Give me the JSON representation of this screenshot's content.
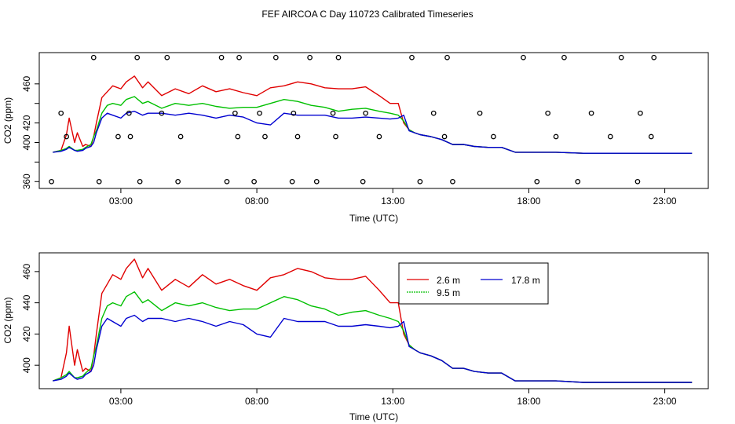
{
  "figure_title": "FEF AIRCOA C  Day 110723  Calibrated Timeseries",
  "colors": {
    "s1": "#e00000",
    "s2": "#00c000",
    "s3": "#0000d0",
    "axis": "#000000"
  },
  "chart_data": [
    {
      "type": "scatter",
      "title": "",
      "xlabel": "Time (UTC)",
      "ylabel": "CO2 (ppm)",
      "xlim": [
        0.0,
        24.6
      ],
      "ylim": [
        353,
        492
      ],
      "xticks": [
        3,
        8,
        13,
        18,
        23
      ],
      "xtick_labels": [
        "03:00",
        "08:00",
        "13:00",
        "18:00",
        "23:00"
      ],
      "yticks": [
        360,
        380,
        400,
        420,
        440,
        460
      ],
      "ytick_labels": [
        "360",
        "",
        "400",
        "420",
        "",
        "460"
      ],
      "points_x": [
        0.45,
        0.8,
        1.0,
        2.0,
        2.2,
        2.9,
        3.3,
        3.35,
        3.6,
        3.7,
        4.5,
        4.7,
        5.1,
        5.2,
        6.7,
        6.9,
        7.2,
        7.3,
        7.35,
        7.9,
        8.1,
        8.3,
        8.7,
        9.3,
        9.35,
        9.5,
        9.95,
        10.2,
        10.8,
        10.9,
        11.0,
        11.9,
        12.0,
        12.5,
        13.7,
        14.0,
        14.5,
        14.9,
        15.0,
        15.2,
        16.2,
        16.7,
        17.8,
        18.3,
        18.7,
        19.0,
        19.3,
        19.8,
        20.3,
        21.0,
        21.4,
        22.0,
        22.1,
        22.5,
        22.6
      ],
      "points_y": [
        360,
        430,
        406,
        487,
        360,
        406,
        430,
        406,
        487,
        360,
        430,
        487,
        360,
        406,
        487,
        360,
        430,
        406,
        487,
        360,
        430,
        406,
        487,
        360,
        430,
        406,
        487,
        360,
        430,
        406,
        487,
        360,
        430,
        406,
        487,
        360,
        430,
        406,
        487,
        360,
        430,
        406,
        487,
        360,
        430,
        406,
        487,
        360,
        430,
        406,
        487,
        360,
        430,
        406,
        487
      ],
      "series": [
        {
          "name": "2.6 m",
          "color": "#e00000",
          "x": [
            0.5,
            0.8,
            1.0,
            1.1,
            1.3,
            1.4,
            1.6,
            1.7,
            1.9,
            2.0,
            2.1,
            2.3,
            2.5,
            2.7,
            3.0,
            3.2,
            3.5,
            3.8,
            4.0,
            4.5,
            5.0,
            5.5,
            6.0,
            6.5,
            7.0,
            7.5,
            8.0,
            8.5,
            9.0,
            9.5,
            10.0,
            10.5,
            11.0,
            11.5,
            12.0,
            12.5,
            12.9,
            13.2,
            13.4,
            13.6,
            13.8,
            14.0,
            14.4,
            14.8,
            15.2,
            15.6,
            16.0,
            16.5,
            17.0,
            17.5,
            18.0,
            19.0,
            20.0,
            21.0,
            22.0,
            23.0,
            24.0
          ],
          "y": [
            390,
            392,
            408,
            425,
            400,
            410,
            396,
            398,
            396,
            406,
            420,
            446,
            452,
            458,
            455,
            462,
            468,
            456,
            462,
            448,
            455,
            450,
            458,
            452,
            455,
            451,
            448,
            456,
            458,
            462,
            460,
            456,
            455,
            455,
            457,
            448,
            440,
            440,
            420,
            413,
            410,
            408,
            406,
            403,
            398,
            398,
            396,
            395,
            395,
            390,
            390,
            390,
            389,
            389,
            389,
            389,
            389
          ]
        },
        {
          "name": "9.5 m",
          "color": "#00c000",
          "x": [
            0.5,
            0.8,
            1.0,
            1.1,
            1.3,
            1.4,
            1.6,
            1.7,
            1.9,
            2.0,
            2.1,
            2.3,
            2.5,
            2.7,
            3.0,
            3.2,
            3.5,
            3.8,
            4.0,
            4.5,
            5.0,
            5.5,
            6.0,
            6.5,
            7.0,
            7.5,
            8.0,
            8.5,
            9.0,
            9.5,
            10.0,
            10.5,
            11.0,
            11.5,
            12.0,
            12.5,
            12.9,
            13.2,
            13.4,
            13.6,
            13.8,
            14.0,
            14.4,
            14.8,
            15.2,
            15.6,
            16.0,
            16.5,
            17.0,
            17.5,
            18.0,
            19.0,
            20.0,
            21.0,
            22.0,
            23.0,
            24.0
          ],
          "y": [
            390,
            392,
            394,
            396,
            392,
            392,
            393,
            395,
            398,
            406,
            412,
            430,
            438,
            440,
            438,
            444,
            447,
            440,
            442,
            435,
            440,
            438,
            440,
            437,
            435,
            436,
            436,
            440,
            444,
            442,
            438,
            436,
            432,
            434,
            435,
            432,
            430,
            428,
            422,
            413,
            410,
            408,
            406,
            403,
            398,
            398,
            396,
            395,
            395,
            390,
            390,
            390,
            389,
            389,
            389,
            389,
            389
          ]
        },
        {
          "name": "17.8 m",
          "color": "#0000d0",
          "x": [
            0.5,
            0.8,
            1.0,
            1.1,
            1.3,
            1.4,
            1.6,
            1.7,
            1.9,
            2.0,
            2.1,
            2.3,
            2.5,
            2.7,
            3.0,
            3.2,
            3.5,
            3.8,
            4.0,
            4.5,
            5.0,
            5.5,
            6.0,
            6.5,
            7.0,
            7.5,
            8.0,
            8.5,
            9.0,
            9.5,
            10.0,
            10.5,
            11.0,
            11.5,
            12.0,
            12.5,
            12.9,
            13.2,
            13.4,
            13.6,
            13.8,
            14.0,
            14.4,
            14.8,
            15.2,
            15.6,
            16.0,
            16.5,
            17.0,
            17.5,
            18.0,
            19.0,
            20.0,
            21.0,
            22.0,
            23.0,
            24.0
          ],
          "y": [
            390,
            391,
            393,
            395,
            392,
            391,
            392,
            394,
            396,
            400,
            410,
            425,
            430,
            428,
            425,
            430,
            432,
            428,
            430,
            430,
            428,
            430,
            428,
            425,
            428,
            426,
            420,
            418,
            430,
            428,
            428,
            428,
            425,
            425,
            426,
            425,
            424,
            425,
            428,
            412,
            410,
            408,
            406,
            403,
            398,
            398,
            396,
            395,
            395,
            390,
            390,
            390,
            389,
            389,
            389,
            389,
            389
          ]
        }
      ]
    },
    {
      "type": "line",
      "title": "",
      "xlabel": "Time (UTC)",
      "ylabel": "CO2 (ppm)",
      "xlim": [
        0.0,
        24.6
      ],
      "ylim": [
        385,
        472
      ],
      "xticks": [
        3,
        8,
        13,
        18,
        23
      ],
      "xtick_labels": [
        "03:00",
        "08:00",
        "13:00",
        "18:00",
        "23:00"
      ],
      "yticks": [
        400,
        420,
        440,
        460
      ],
      "ytick_labels": [
        "400",
        "420",
        "440",
        "460"
      ],
      "legend": {
        "position": "top-right",
        "entries": [
          "2.6 m",
          "9.5 m",
          "17.8 m"
        ]
      },
      "series": [
        {
          "name": "2.6 m",
          "color": "#e00000",
          "x": [
            0.5,
            0.8,
            1.0,
            1.1,
            1.3,
            1.4,
            1.6,
            1.7,
            1.9,
            2.0,
            2.1,
            2.3,
            2.5,
            2.7,
            3.0,
            3.2,
            3.5,
            3.8,
            4.0,
            4.5,
            5.0,
            5.5,
            6.0,
            6.5,
            7.0,
            7.5,
            8.0,
            8.5,
            9.0,
            9.5,
            10.0,
            10.5,
            11.0,
            11.5,
            12.0,
            12.5,
            12.9,
            13.2,
            13.4,
            13.6,
            13.8,
            14.0,
            14.4,
            14.8,
            15.2,
            15.6,
            16.0,
            16.5,
            17.0,
            17.5,
            18.0,
            19.0,
            20.0,
            21.0,
            22.0,
            23.0,
            24.0
          ],
          "y": [
            390,
            392,
            408,
            425,
            400,
            410,
            396,
            398,
            396,
            406,
            420,
            446,
            452,
            458,
            455,
            462,
            468,
            456,
            462,
            448,
            455,
            450,
            458,
            452,
            455,
            451,
            448,
            456,
            458,
            462,
            460,
            456,
            455,
            455,
            457,
            448,
            440,
            440,
            420,
            413,
            410,
            408,
            406,
            403,
            398,
            398,
            396,
            395,
            395,
            390,
            390,
            390,
            389,
            389,
            389,
            389,
            389
          ]
        },
        {
          "name": "9.5 m",
          "color": "#00c000",
          "x": [
            0.5,
            0.8,
            1.0,
            1.1,
            1.3,
            1.4,
            1.6,
            1.7,
            1.9,
            2.0,
            2.1,
            2.3,
            2.5,
            2.7,
            3.0,
            3.2,
            3.5,
            3.8,
            4.0,
            4.5,
            5.0,
            5.5,
            6.0,
            6.5,
            7.0,
            7.5,
            8.0,
            8.5,
            9.0,
            9.5,
            10.0,
            10.5,
            11.0,
            11.5,
            12.0,
            12.5,
            12.9,
            13.2,
            13.4,
            13.6,
            13.8,
            14.0,
            14.4,
            14.8,
            15.2,
            15.6,
            16.0,
            16.5,
            17.0,
            17.5,
            18.0,
            19.0,
            20.0,
            21.0,
            22.0,
            23.0,
            24.0
          ],
          "y": [
            390,
            392,
            394,
            396,
            392,
            392,
            393,
            395,
            398,
            406,
            412,
            430,
            438,
            440,
            438,
            444,
            447,
            440,
            442,
            435,
            440,
            438,
            440,
            437,
            435,
            436,
            436,
            440,
            444,
            442,
            438,
            436,
            432,
            434,
            435,
            432,
            430,
            428,
            422,
            413,
            410,
            408,
            406,
            403,
            398,
            398,
            396,
            395,
            395,
            390,
            390,
            390,
            389,
            389,
            389,
            389,
            389
          ]
        },
        {
          "name": "17.8 m",
          "color": "#0000d0",
          "x": [
            0.5,
            0.8,
            1.0,
            1.1,
            1.3,
            1.4,
            1.6,
            1.7,
            1.9,
            2.0,
            2.1,
            2.3,
            2.5,
            2.7,
            3.0,
            3.2,
            3.5,
            3.8,
            4.0,
            4.5,
            5.0,
            5.5,
            6.0,
            6.5,
            7.0,
            7.5,
            8.0,
            8.5,
            9.0,
            9.5,
            10.0,
            10.5,
            11.0,
            11.5,
            12.0,
            12.5,
            12.9,
            13.2,
            13.4,
            13.6,
            13.8,
            14.0,
            14.4,
            14.8,
            15.2,
            15.6,
            16.0,
            16.5,
            17.0,
            17.5,
            18.0,
            19.0,
            20.0,
            21.0,
            22.0,
            23.0,
            24.0
          ],
          "y": [
            390,
            391,
            393,
            395,
            392,
            391,
            392,
            394,
            396,
            400,
            410,
            425,
            430,
            428,
            425,
            430,
            432,
            428,
            430,
            430,
            428,
            430,
            428,
            425,
            428,
            426,
            420,
            418,
            430,
            428,
            428,
            428,
            425,
            425,
            426,
            425,
            424,
            425,
            428,
            412,
            410,
            408,
            406,
            403,
            398,
            398,
            396,
            395,
            395,
            390,
            390,
            390,
            389,
            389,
            389,
            389,
            389
          ]
        }
      ]
    }
  ]
}
